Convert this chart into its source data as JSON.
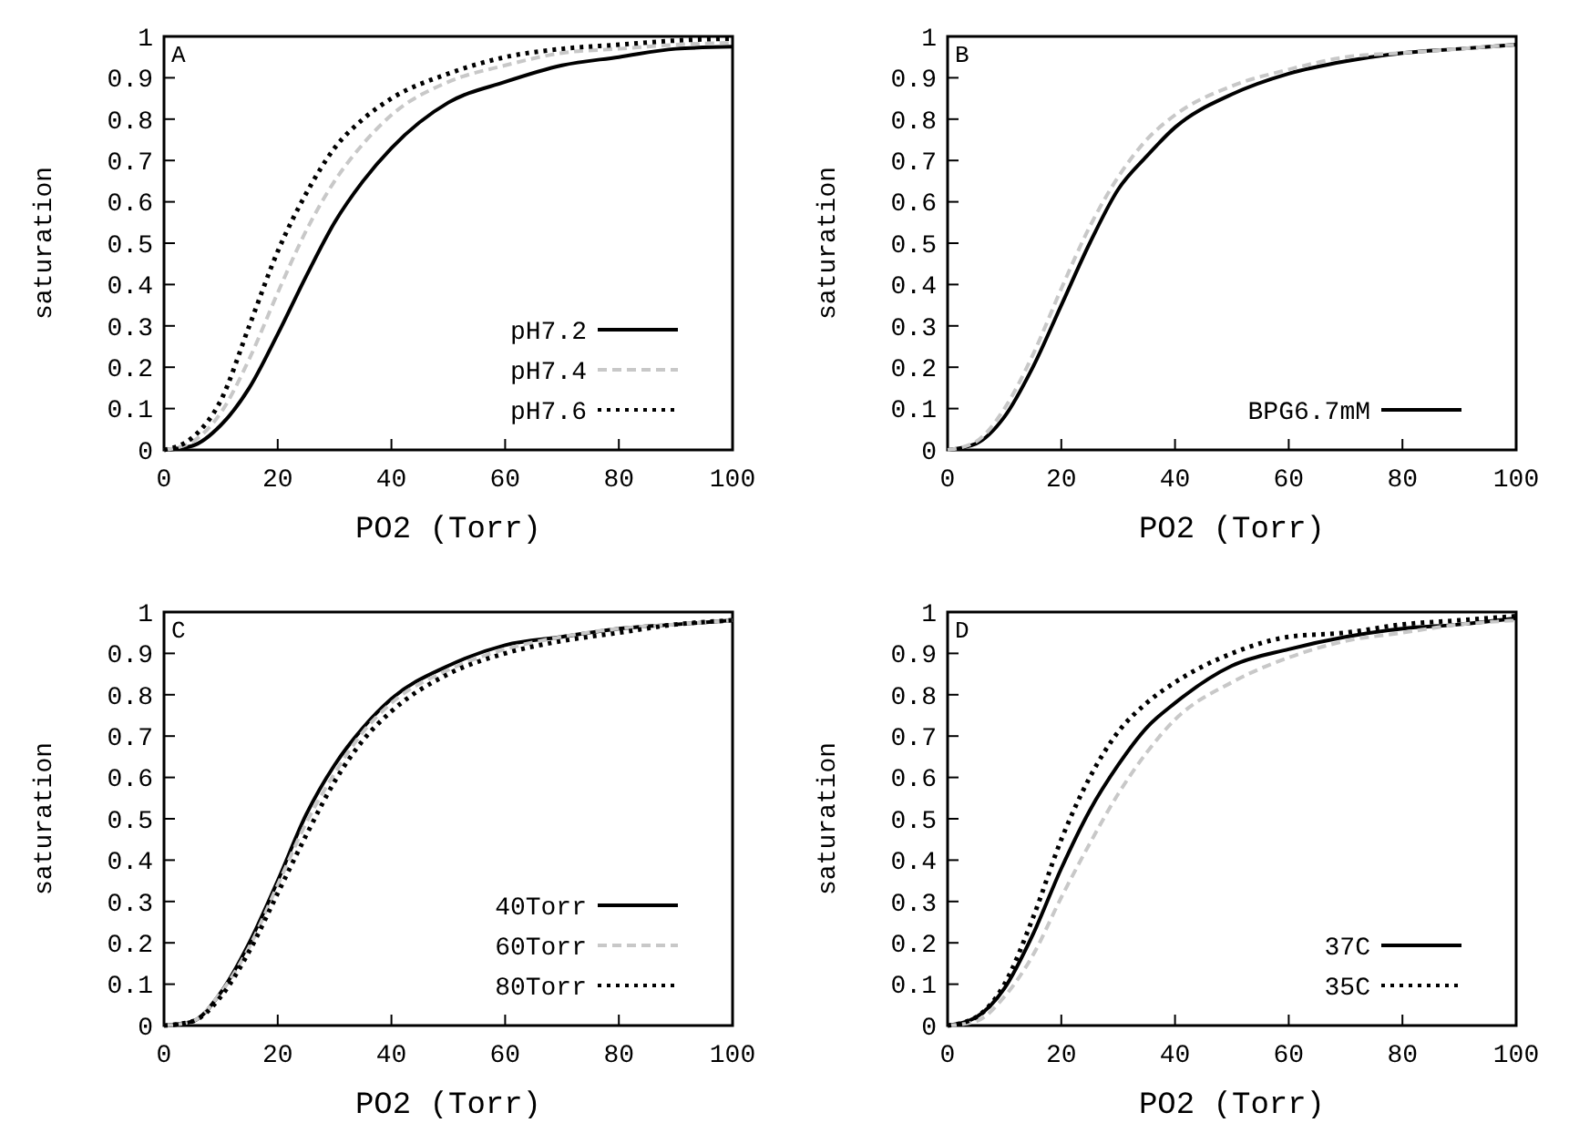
{
  "chart_data": [
    {
      "type": "line",
      "annotations": [
        "A"
      ],
      "xlabel": "PO2 (Torr)",
      "ylabel": "saturation",
      "xlim": [
        0,
        100
      ],
      "xticks": [
        0,
        20,
        40,
        60,
        80,
        100
      ],
      "ylim": [
        0,
        1
      ],
      "yticks": [
        0,
        0.1,
        0.2,
        0.3,
        0.4,
        0.5,
        0.6,
        0.7,
        0.8,
        0.9,
        1
      ],
      "legend": "bottom right",
      "grid": false,
      "marker": "none",
      "x": [
        0,
        5,
        10,
        15,
        20,
        25,
        30,
        35,
        40,
        50,
        60,
        70,
        80,
        90,
        100
      ],
      "series": [
        {
          "name": "pH7.2",
          "color": "#000000",
          "line_style": "solid",
          "values": [
            0,
            0.01,
            0.06,
            0.15,
            0.28,
            0.42,
            0.55,
            0.65,
            0.73,
            0.84,
            0.89,
            0.93,
            0.95,
            0.97,
            0.975
          ]
        },
        {
          "name": "pH7.4",
          "color": "#c8c8c8",
          "line_style": "dashed",
          "values": [
            0,
            0.02,
            0.09,
            0.22,
            0.38,
            0.53,
            0.65,
            0.74,
            0.81,
            0.89,
            0.93,
            0.96,
            0.97,
            0.98,
            0.985
          ]
        },
        {
          "name": "pH7.6",
          "color": "#000000",
          "line_style": "dotted",
          "values": [
            0,
            0.03,
            0.12,
            0.3,
            0.48,
            0.62,
            0.73,
            0.8,
            0.85,
            0.91,
            0.95,
            0.97,
            0.98,
            0.99,
            0.995
          ]
        }
      ]
    },
    {
      "type": "line",
      "annotations": [
        "B"
      ],
      "xlabel": "PO2 (Torr)",
      "ylabel": "saturation",
      "xlim": [
        0,
        100
      ],
      "xticks": [
        0,
        20,
        40,
        60,
        80,
        100
      ],
      "ylim": [
        0,
        1
      ],
      "yticks": [
        0,
        0.1,
        0.2,
        0.3,
        0.4,
        0.5,
        0.6,
        0.7,
        0.8,
        0.9,
        1
      ],
      "legend": "bottom right",
      "grid": false,
      "marker": "none",
      "x": [
        0,
        5,
        10,
        15,
        20,
        25,
        30,
        35,
        40,
        50,
        60,
        70,
        80,
        90,
        100
      ],
      "series": [
        {
          "name": "BPG6.7mM",
          "color": "#000000",
          "line_style": "solid",
          "values": [
            0,
            0.015,
            0.08,
            0.2,
            0.35,
            0.5,
            0.63,
            0.71,
            0.78,
            0.86,
            0.91,
            0.94,
            0.96,
            0.97,
            0.98
          ]
        },
        {
          "color": "#c8c8c8",
          "line_style": "dashed",
          "values": [
            0,
            0.02,
            0.1,
            0.23,
            0.39,
            0.54,
            0.66,
            0.75,
            0.81,
            0.88,
            0.92,
            0.95,
            0.96,
            0.97,
            0.98
          ]
        }
      ]
    },
    {
      "type": "line",
      "annotations": [
        "C"
      ],
      "xlabel": "PO2 (Torr)",
      "ylabel": "saturation",
      "xlim": [
        0,
        100
      ],
      "xticks": [
        0,
        20,
        40,
        60,
        80,
        100
      ],
      "ylim": [
        0,
        1
      ],
      "yticks": [
        0,
        0.1,
        0.2,
        0.3,
        0.4,
        0.5,
        0.6,
        0.7,
        0.8,
        0.9,
        1
      ],
      "legend": "bottom right",
      "grid": false,
      "marker": "none",
      "x": [
        0,
        5,
        10,
        15,
        20,
        25,
        30,
        35,
        40,
        50,
        60,
        70,
        80,
        90,
        100
      ],
      "series": [
        {
          "name": "40Torr",
          "color": "#000000",
          "line_style": "solid",
          "values": [
            0,
            0.01,
            0.08,
            0.2,
            0.35,
            0.51,
            0.63,
            0.72,
            0.79,
            0.87,
            0.92,
            0.94,
            0.96,
            0.97,
            0.98
          ]
        },
        {
          "name": "60Torr",
          "color": "#c8c8c8",
          "line_style": "dashed",
          "values": [
            0,
            0.01,
            0.08,
            0.19,
            0.34,
            0.49,
            0.61,
            0.71,
            0.78,
            0.86,
            0.91,
            0.94,
            0.96,
            0.97,
            0.98
          ]
        },
        {
          "name": "80Torr",
          "color": "#000000",
          "line_style": "dotted",
          "values": [
            0,
            0.01,
            0.07,
            0.18,
            0.32,
            0.46,
            0.59,
            0.69,
            0.76,
            0.85,
            0.9,
            0.93,
            0.95,
            0.97,
            0.98
          ]
        }
      ]
    },
    {
      "type": "line",
      "annotations": [
        "D"
      ],
      "xlabel": "PO2 (Torr)",
      "ylabel": "saturation",
      "xlim": [
        0,
        100
      ],
      "xticks": [
        0,
        20,
        40,
        60,
        80,
        100
      ],
      "ylim": [
        0,
        1
      ],
      "yticks": [
        0,
        0.1,
        0.2,
        0.3,
        0.4,
        0.5,
        0.6,
        0.7,
        0.8,
        0.9,
        1
      ],
      "legend": "bottom right",
      "grid": false,
      "marker": "none",
      "x": [
        0,
        5,
        10,
        15,
        20,
        25,
        30,
        35,
        40,
        50,
        60,
        70,
        80,
        90,
        100
      ],
      "series": [
        {
          "name": "37C",
          "color": "#000000",
          "line_style": "solid",
          "values": [
            0,
            0.02,
            0.09,
            0.22,
            0.38,
            0.52,
            0.63,
            0.72,
            0.78,
            0.87,
            0.91,
            0.94,
            0.96,
            0.97,
            0.985
          ]
        },
        {
          "color": "#c8c8c8",
          "line_style": "dashed",
          "values": [
            0,
            0.01,
            0.07,
            0.17,
            0.31,
            0.44,
            0.56,
            0.66,
            0.74,
            0.83,
            0.89,
            0.93,
            0.95,
            0.97,
            0.98
          ]
        },
        {
          "name": "35C",
          "color": "#000000",
          "line_style": "dotted",
          "values": [
            0,
            0.02,
            0.1,
            0.26,
            0.45,
            0.6,
            0.71,
            0.78,
            0.83,
            0.9,
            0.94,
            0.95,
            0.97,
            0.98,
            0.99
          ]
        }
      ]
    }
  ]
}
